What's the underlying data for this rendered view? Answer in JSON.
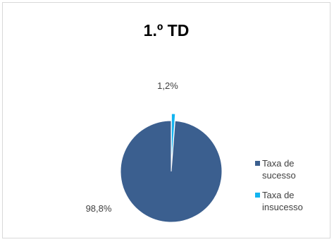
{
  "chart_data": {
    "type": "pie",
    "title": "1.º  TD",
    "categories": [
      "Taxa de sucesso",
      "Taxa de insucesso"
    ],
    "values": [
      98.8,
      1.2
    ],
    "data_labels": [
      "98,8%",
      "1,2%"
    ],
    "colors": [
      "#3b5f8f",
      "#12b4f0"
    ],
    "legend_position": "right"
  }
}
